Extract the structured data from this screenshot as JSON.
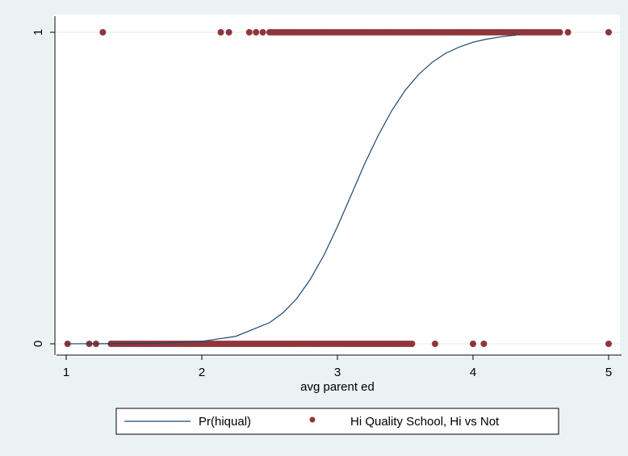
{
  "chart_data": {
    "type": "scatter",
    "title": "",
    "xlabel": "avg parent ed",
    "ylabel": "",
    "xlim": [
      1,
      5
    ],
    "ylim": [
      0,
      1
    ],
    "x_ticks": [
      "1",
      "2",
      "3",
      "4",
      "5"
    ],
    "y_ticks": [
      "0",
      "1"
    ],
    "grid": true,
    "legend_position": "bottom",
    "series": [
      {
        "name": "Pr(hiqual)",
        "kind": "line",
        "color": "#1a476f",
        "x": [
          1.0,
          1.25,
          1.5,
          1.75,
          2.0,
          2.25,
          2.5,
          2.6,
          2.7,
          2.8,
          2.9,
          3.0,
          3.1,
          3.2,
          3.3,
          3.4,
          3.5,
          3.6,
          3.7,
          3.8,
          3.9,
          4.0,
          4.1,
          4.2,
          4.32
        ],
        "y": [
          0.0001,
          0.0003,
          0.0009,
          0.003,
          0.008,
          0.024,
          0.068,
          0.1,
          0.145,
          0.207,
          0.284,
          0.376,
          0.476,
          0.577,
          0.668,
          0.748,
          0.814,
          0.865,
          0.904,
          0.933,
          0.953,
          0.968,
          0.978,
          0.985,
          0.991
        ]
      },
      {
        "name": "Hi Quality School, Hi vs Not",
        "kind": "points",
        "color": "#90353b",
        "groups": [
          {
            "y": 1,
            "x": [
              1.27,
              2.14,
              2.2,
              2.35,
              2.4,
              2.45
            ],
            "range": [
              2.5,
              4.65
            ],
            "range_step": 0.02
          },
          {
            "y": 1,
            "x": [
              4.7,
              5.0
            ],
            "range": null,
            "range_step": null
          },
          {
            "y": 0,
            "x": [
              1.01,
              1.17,
              1.22
            ],
            "range": [
              1.33,
              3.55
            ],
            "range_step": 0.02
          },
          {
            "y": 0,
            "x": [
              3.72,
              4.0,
              4.08,
              5.0
            ],
            "range": null,
            "range_step": null
          }
        ]
      }
    ]
  }
}
